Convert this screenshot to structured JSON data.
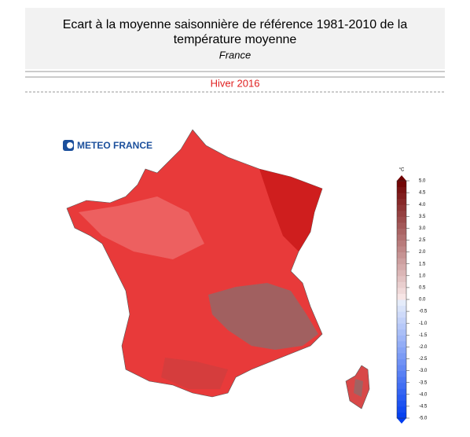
{
  "header": {
    "title_lines": [
      "Ecart à la moyenne saisonnière de référence 1981-2010 de la",
      "température moyenne"
    ],
    "subtitle": "France"
  },
  "season": "Hiver 2016",
  "logo": "METEO FRANCE",
  "legend": {
    "unit": "°C",
    "range": [
      -5,
      5
    ],
    "ticks": [
      {
        "value": 5,
        "label": "5.0"
      },
      4.5,
      {
        "value": 4,
        "label": "4.0"
      },
      3.5,
      {
        "value": 3,
        "label": "3.0"
      },
      2.5,
      {
        "value": 2,
        "label": "2.0"
      },
      1.5,
      {
        "value": 1,
        "label": "1.0"
      },
      0.5,
      {
        "value": 0,
        "label": "0.0"
      },
      -0.5,
      {
        "value": -1,
        "label": "-1.0"
      },
      -1.5,
      {
        "value": -2,
        "label": "-2.0"
      },
      -2.5,
      {
        "value": -3,
        "label": "-3.0"
      },
      -3.5,
      {
        "value": -4,
        "label": "-4.0"
      },
      -4.5,
      {
        "value": -5,
        "label": "-5.0"
      }
    ]
  }
}
